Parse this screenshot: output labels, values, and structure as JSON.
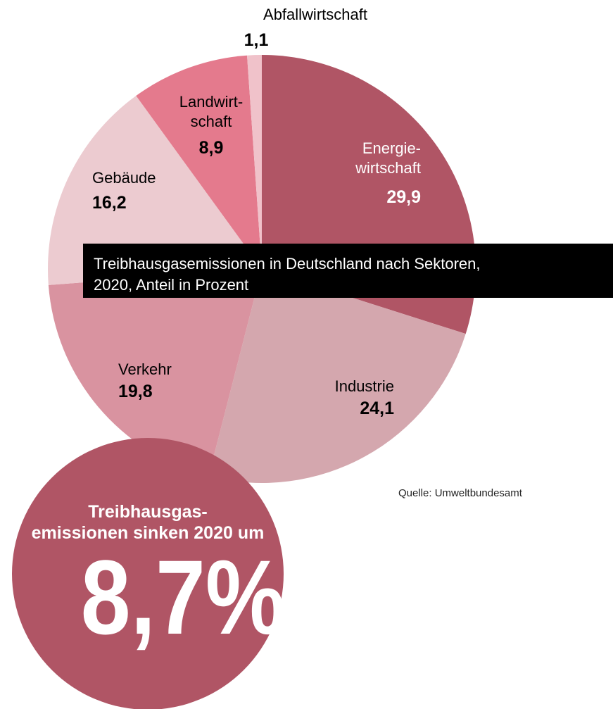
{
  "chart_data": {
    "type": "pie",
    "title": "Treibhausgasemissionen in Deutschland nach Sektoren,\n2020, Anteil in Prozent",
    "categories": [
      "Energie-\nwirtschaft",
      "Industrie",
      "Verkehr",
      "Gebäude",
      "Landwirt-\nschaft",
      "Abfallwirtschaft"
    ],
    "values": [
      29.9,
      24.1,
      19.8,
      16.2,
      8.9,
      1.1
    ],
    "value_labels": [
      "29,9",
      "24,1",
      "19,8",
      "16,2",
      "8,9",
      "1,1"
    ],
    "colors": [
      "#b05565",
      "#d4a7ae",
      "#d993a0",
      "#eccbd0",
      "#e47a8d",
      "#f0c2ca"
    ],
    "source": "Quelle: Umweltbundesamt"
  },
  "callout": {
    "text": "Treibhausgas-\nemissionen sinken 2020 um",
    "headline": "8,7%",
    "color": "#b05565"
  }
}
